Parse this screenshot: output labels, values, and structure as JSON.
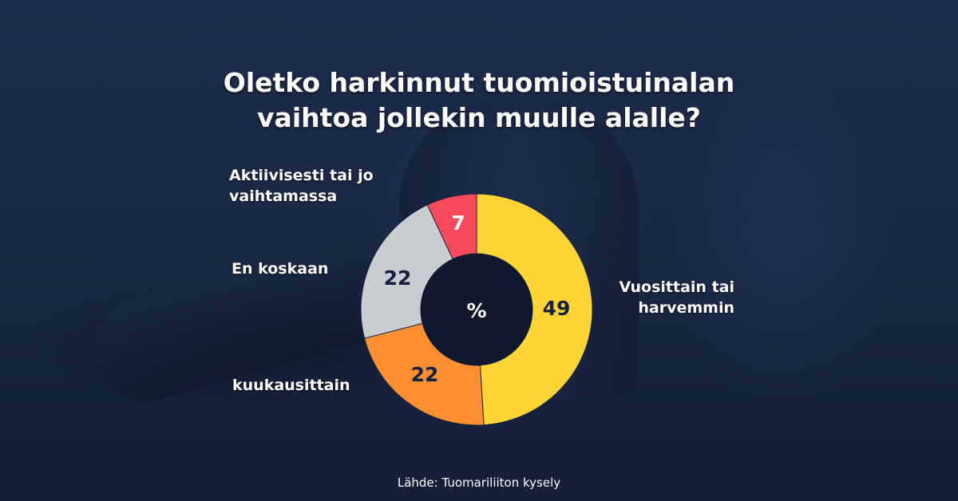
{
  "title": {
    "line1": "Oletko harkinnut tuomioistuinalan",
    "line2": "vaihtoa jollekin muulle alalle?"
  },
  "center_label": "%",
  "labels": {
    "aktiivisesti_line1": "Aktiivisesti tai jo",
    "aktiivisesti_line2": "vaihtamassa",
    "en_koskaan": "En koskaan",
    "kuukausittain": "kuukausittain",
    "vuosittain_line1": "Vuosittain tai",
    "vuosittain_line2": "harvemmin"
  },
  "values": {
    "vuosittain": "49",
    "kuukausittain": "22",
    "en_koskaan": "22",
    "aktiivisesti": "7"
  },
  "source": "Lähde: Tuomariliiton kysely",
  "colors": {
    "vuosittain": "#fed535",
    "kuukausittain": "#fe8f30",
    "en_koskaan": "#c8cdd2",
    "aktiivisesti": "#f84a5a",
    "value_text_dark": "#14213d",
    "background": "#1a2742"
  },
  "chart_data": {
    "type": "pie",
    "subtype": "donut",
    "title": "Oletko harkinnut tuomioistuinalan vaihtoa jollekin muulle alalle?",
    "unit": "%",
    "categories": [
      "Vuosittain tai harvemmin",
      "kuukausittain",
      "En koskaan",
      "Aktiivisesti tai jo vaihtamassa"
    ],
    "values": [
      49,
      22,
      22,
      7
    ],
    "colors": [
      "#fed535",
      "#fe8f30",
      "#c8cdd2",
      "#f84a5a"
    ],
    "start_angle": "12 o'clock, clockwise",
    "center_label": "%",
    "source": "Lähde: Tuomariliiton kysely",
    "legend": "none (direct labels)"
  }
}
